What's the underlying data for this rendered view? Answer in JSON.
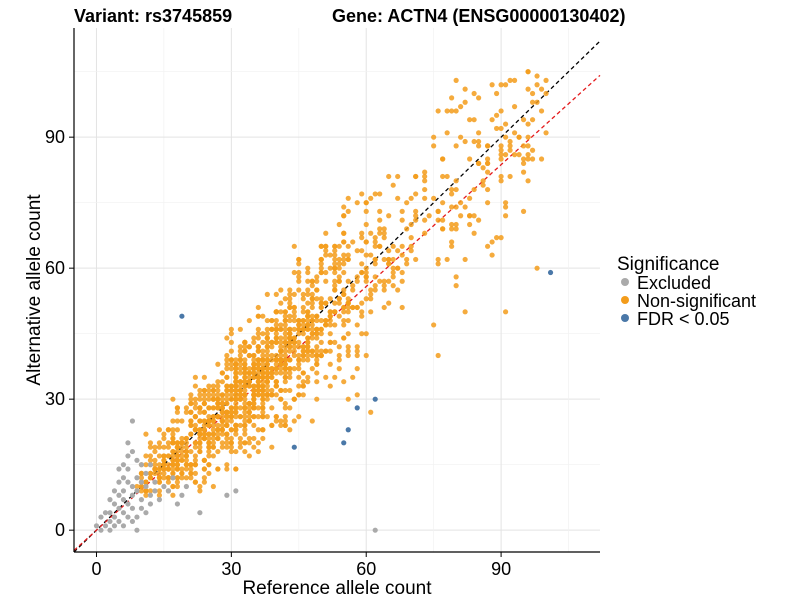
{
  "chart_data": {
    "type": "scatter",
    "title_left": "Variant: rs3745859",
    "title_right": "Gene: ACTN4 (ENSG00000130402)",
    "xlabel": "Reference allele count",
    "ylabel": "Alternative allele count",
    "xlim": [
      -5,
      112
    ],
    "ylim": [
      -5,
      115
    ],
    "xticks": [
      0,
      30,
      60,
      90
    ],
    "yticks": [
      0,
      30,
      60,
      90
    ],
    "grid": true,
    "legend": {
      "title": "Significance",
      "position": "right",
      "entries": [
        {
          "label": "Excluded",
          "color": "#aaaaaa"
        },
        {
          "label": "Non-significant",
          "color": "#f39c1b"
        },
        {
          "label": "FDR < 0.05",
          "color": "#4a78a8"
        }
      ]
    },
    "reference_lines": [
      {
        "slope": 1.0,
        "intercept": 0,
        "color": "#000000",
        "style": "dashed"
      },
      {
        "slope": 0.93,
        "intercept": 0,
        "color": "#e41a1c",
        "style": "dashed"
      }
    ],
    "series": [
      {
        "name": "Excluded",
        "color": "#aaaaaa",
        "points": [
          [
            0,
            1
          ],
          [
            1,
            0
          ],
          [
            2,
            1
          ],
          [
            3,
            2
          ],
          [
            3,
            4
          ],
          [
            4,
            3
          ],
          [
            4,
            6
          ],
          [
            5,
            5
          ],
          [
            5,
            8
          ],
          [
            6,
            4
          ],
          [
            6,
            7
          ],
          [
            6,
            9
          ],
          [
            7,
            6
          ],
          [
            7,
            11
          ],
          [
            7,
            14
          ],
          [
            8,
            8
          ],
          [
            8,
            10
          ],
          [
            8,
            5
          ],
          [
            9,
            12
          ],
          [
            9,
            9
          ],
          [
            10,
            11
          ],
          [
            10,
            7
          ],
          [
            11,
            13
          ],
          [
            11,
            10
          ],
          [
            12,
            8
          ],
          [
            12,
            15
          ],
          [
            13,
            11
          ],
          [
            5,
            11
          ],
          [
            6,
            12
          ],
          [
            7,
            17
          ],
          [
            8,
            25
          ],
          [
            4,
            9
          ],
          [
            3,
            7
          ],
          [
            2,
            4
          ],
          [
            1,
            3
          ],
          [
            9,
            3
          ],
          [
            10,
            5
          ],
          [
            11,
            4
          ],
          [
            12,
            6
          ],
          [
            13,
            9
          ],
          [
            14,
            7
          ],
          [
            15,
            10
          ],
          [
            16,
            9
          ],
          [
            17,
            12
          ],
          [
            18,
            6
          ],
          [
            19,
            8
          ],
          [
            20,
            10
          ],
          [
            23,
            4
          ],
          [
            29,
            8
          ],
          [
            31,
            9
          ],
          [
            62,
            0
          ],
          [
            5,
            14
          ],
          [
            6,
            15
          ],
          [
            7,
            20
          ],
          [
            8,
            18
          ],
          [
            9,
            16
          ],
          [
            10,
            15
          ],
          [
            5,
            2
          ],
          [
            6,
            1
          ],
          [
            7,
            3
          ],
          [
            8,
            2
          ],
          [
            4,
            1
          ],
          [
            3,
            0
          ],
          [
            9,
            0
          ]
        ]
      },
      {
        "name": "Non-significant",
        "color": "#f39c1b",
        "points": []
      },
      {
        "name": "FDR < 0.05",
        "color": "#4a78a8",
        "points": [
          [
            19,
            49
          ],
          [
            44,
            19
          ],
          [
            55,
            20
          ],
          [
            56,
            23
          ],
          [
            58,
            28
          ],
          [
            62,
            30
          ],
          [
            101,
            59
          ]
        ]
      }
    ]
  }
}
